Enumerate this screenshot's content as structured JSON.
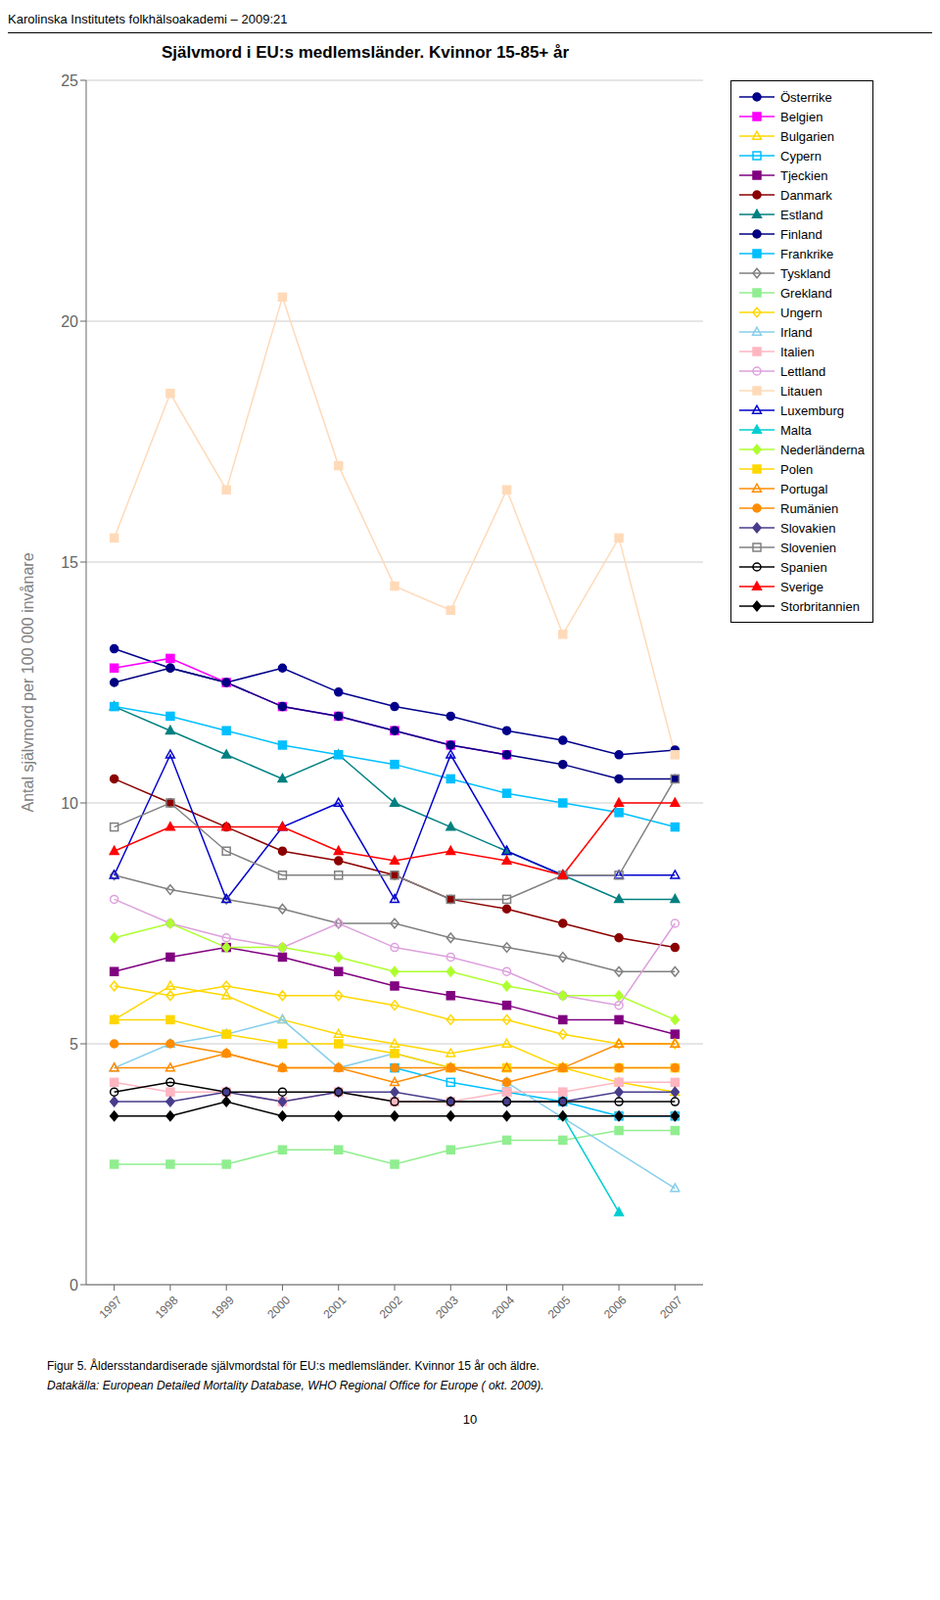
{
  "chart_data": {
    "type": "line",
    "title": "Självmord i EU:s medlemsländer. Kvinnor 15-85+ år",
    "ylabel": "Antal självmord per 100 000 invånare",
    "annotations": [
      "Karolinska Institutets folkhälsoakademi – 2009:21",
      "Figur 5. Åldersstandardiserade självmordstal för EU:s medlemsländer. Kvinnor 15 år och äldre.",
      "Datakälla: European Detailed Mortality Database, WHO Regional Office for Europe ( okt. 2009).",
      "10"
    ],
    "x": [
      1997,
      1998,
      1999,
      2000,
      2001,
      2002,
      2003,
      2004,
      2005,
      2006,
      2007
    ],
    "xlim": [
      1996.5,
      2007.5
    ],
    "xticks": [
      1997,
      1998,
      1999,
      2000,
      2001,
      2002,
      2003,
      2004,
      2005,
      2006,
      2007
    ],
    "ylim": [
      0,
      25
    ],
    "yticks": [
      0,
      5,
      10,
      15,
      20,
      25
    ],
    "grid": "y",
    "legend": "outside right",
    "series": [
      {
        "name": "Österrike",
        "color": "#00008B",
        "marker": "circle",
        "values": [
          13.2,
          12.8,
          12.5,
          12.8,
          12.3,
          12.0,
          11.8,
          11.5,
          11.3,
          11.0,
          11.1
        ]
      },
      {
        "name": "Belgien",
        "color": "#FF00FF",
        "marker": "square",
        "values": [
          12.8,
          13.0,
          12.5,
          12.0,
          11.8,
          11.5,
          11.2,
          11.0,
          null,
          null,
          null
        ]
      },
      {
        "name": "Bulgarien",
        "color": "#FFD700",
        "marker": "triangle_open",
        "values": [
          5.5,
          6.2,
          6.0,
          5.5,
          5.2,
          5.0,
          4.8,
          5.0,
          4.5,
          4.2,
          4.0
        ]
      },
      {
        "name": "Cypern",
        "color": "#00BFFF",
        "marker": "square_open",
        "values": [
          null,
          null,
          null,
          null,
          null,
          4.5,
          4.2,
          4.0,
          3.8,
          3.5,
          3.5
        ]
      },
      {
        "name": "Tjeckien",
        "color": "#800080",
        "marker": "square",
        "values": [
          6.5,
          6.8,
          7.0,
          6.8,
          6.5,
          6.2,
          6.0,
          5.8,
          5.5,
          5.5,
          5.2
        ]
      },
      {
        "name": "Danmark",
        "color": "#8B0000",
        "marker": "circle",
        "values": [
          10.5,
          10.0,
          9.5,
          9.0,
          8.8,
          8.5,
          8.0,
          7.8,
          7.5,
          7.2,
          7.0
        ]
      },
      {
        "name": "Estland",
        "color": "#008080",
        "marker": "triangle",
        "values": [
          12.0,
          11.5,
          11.0,
          10.5,
          11.0,
          10.0,
          9.5,
          9.0,
          8.5,
          8.0,
          8.0
        ]
      },
      {
        "name": "Finland",
        "color": "#000080",
        "marker": "circle",
        "values": [
          12.5,
          12.8,
          12.5,
          12.0,
          11.8,
          11.5,
          11.2,
          11.0,
          10.8,
          10.5,
          10.5
        ]
      },
      {
        "name": "Frankrike",
        "color": "#00BFFF",
        "marker": "square",
        "values": [
          12.0,
          11.8,
          11.5,
          11.2,
          11.0,
          10.8,
          10.5,
          10.2,
          10.0,
          9.8,
          9.5
        ]
      },
      {
        "name": "Tyskland",
        "color": "#808080",
        "marker": "diamond_open",
        "values": [
          8.5,
          8.2,
          8.0,
          7.8,
          7.5,
          7.5,
          7.2,
          7.0,
          6.8,
          6.5,
          6.5
        ]
      },
      {
        "name": "Grekland",
        "color": "#90EE90",
        "marker": "square",
        "values": [
          2.5,
          2.5,
          2.5,
          2.8,
          2.8,
          2.5,
          2.8,
          3.0,
          3.0,
          3.2,
          3.2
        ]
      },
      {
        "name": "Ungern",
        "color": "#FFD700",
        "marker": "diamond_open",
        "values": [
          6.2,
          6.0,
          6.2,
          6.0,
          6.0,
          5.8,
          5.5,
          5.5,
          5.2,
          5.0,
          5.0
        ]
      },
      {
        "name": "Irland",
        "color": "#87CEEB",
        "marker": "triangle_open",
        "values": [
          4.5,
          5.0,
          5.2,
          5.5,
          4.5,
          4.8,
          4.5,
          4.2,
          null,
          null,
          2.0
        ]
      },
      {
        "name": "Italien",
        "color": "#FFB6C1",
        "marker": "square",
        "values": [
          4.2,
          4.0,
          4.0,
          3.8,
          4.0,
          3.8,
          3.8,
          4.0,
          4.0,
          4.2,
          4.2
        ]
      },
      {
        "name": "Lettland",
        "color": "#DDA0DD",
        "marker": "circle_open",
        "values": [
          8.0,
          7.5,
          7.2,
          7.0,
          7.5,
          7.0,
          6.8,
          6.5,
          6.0,
          5.8,
          7.5
        ]
      },
      {
        "name": "Litauen",
        "color": "#FFDAB9",
        "marker": "square",
        "values": [
          15.5,
          18.5,
          16.5,
          20.5,
          17.0,
          14.5,
          14.0,
          16.5,
          13.5,
          15.5,
          11.0
        ]
      },
      {
        "name": "Luxemburg",
        "color": "#0000CD",
        "marker": "triangle_open",
        "values": [
          8.5,
          11.0,
          8.0,
          9.5,
          10.0,
          8.0,
          11.0,
          9.0,
          8.5,
          8.5,
          8.5
        ]
      },
      {
        "name": "Malta",
        "color": "#00CED1",
        "marker": "triangle",
        "values": [
          null,
          null,
          null,
          null,
          null,
          null,
          null,
          null,
          3.5,
          1.5,
          null
        ]
      },
      {
        "name": "Nederländerna",
        "color": "#ADFF2F",
        "marker": "diamond",
        "values": [
          7.2,
          7.5,
          7.0,
          7.0,
          6.8,
          6.5,
          6.5,
          6.2,
          6.0,
          6.0,
          5.5
        ]
      },
      {
        "name": "Polen",
        "color": "#FFD700",
        "marker": "square",
        "values": [
          5.5,
          5.5,
          5.2,
          5.0,
          5.0,
          4.8,
          4.5,
          4.5,
          4.5,
          4.5,
          4.5
        ]
      },
      {
        "name": "Portugal",
        "color": "#FF8C00",
        "marker": "triangle_open",
        "values": [
          4.5,
          4.5,
          4.8,
          4.5,
          4.5,
          4.2,
          4.5,
          4.5,
          4.5,
          5.0,
          5.0
        ]
      },
      {
        "name": "Rumänien",
        "color": "#FF8C00",
        "marker": "circle",
        "values": [
          5.0,
          5.0,
          4.8,
          4.5,
          4.5,
          4.5,
          4.5,
          4.2,
          4.5,
          4.5,
          4.5
        ]
      },
      {
        "name": "Slovakien",
        "color": "#483D8B",
        "marker": "diamond",
        "values": [
          3.8,
          3.8,
          4.0,
          3.8,
          4.0,
          4.0,
          3.8,
          3.8,
          3.8,
          4.0,
          4.0
        ]
      },
      {
        "name": "Slovenien",
        "color": "#808080",
        "marker": "square_open",
        "values": [
          9.5,
          10.0,
          9.0,
          8.5,
          8.5,
          8.5,
          8.0,
          8.0,
          8.5,
          8.5,
          10.5
        ]
      },
      {
        "name": "Spanien",
        "color": "#000000",
        "marker": "circle_open",
        "values": [
          4.0,
          4.2,
          4.0,
          4.0,
          4.0,
          3.8,
          3.8,
          3.8,
          3.8,
          3.8,
          3.8
        ]
      },
      {
        "name": "Sverige",
        "color": "#FF0000",
        "marker": "triangle",
        "values": [
          9.0,
          9.5,
          9.5,
          9.5,
          9.0,
          8.8,
          9.0,
          8.8,
          8.5,
          10.0,
          10.0
        ]
      },
      {
        "name": "Storbritannien",
        "color": "#000000",
        "marker": "diamond",
        "values": [
          3.5,
          3.5,
          3.8,
          3.5,
          3.5,
          3.5,
          3.5,
          3.5,
          3.5,
          3.5,
          3.5
        ]
      }
    ]
  }
}
